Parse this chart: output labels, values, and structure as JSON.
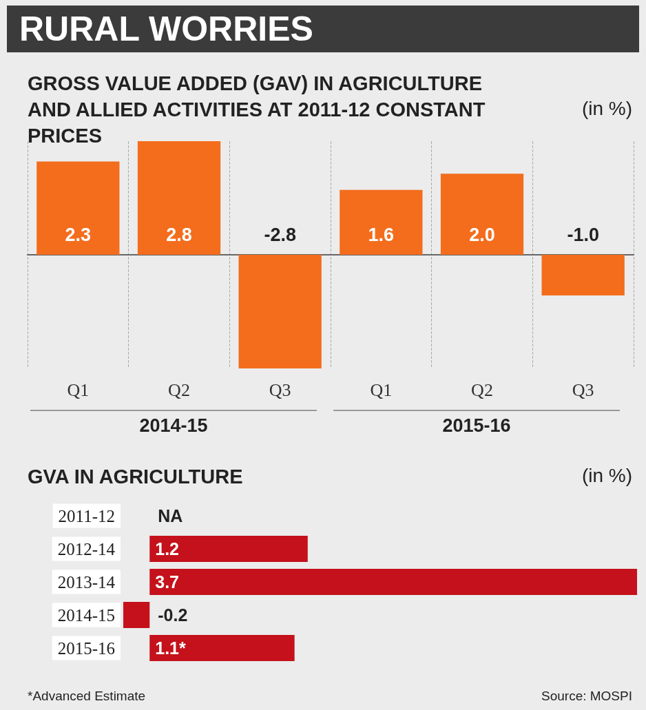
{
  "chart_data": [
    {
      "type": "bar",
      "title": "RURAL WORRIES",
      "subtitle": "GROSS VALUE ADDED (GAV) IN AGRICULTURE AND ALLIED ACTIVITIES AT 2011-12 CONSTANT PRICES",
      "ylabel": "(in %)",
      "categories": [
        "Q1",
        "Q2",
        "Q3",
        "Q1",
        "Q2",
        "Q3"
      ],
      "values": [
        2.3,
        2.8,
        -2.8,
        1.6,
        2.0,
        -1.0
      ],
      "value_labels": [
        "2.3",
        "2.8",
        "-2.8",
        "1.6",
        "2.0",
        "-1.0"
      ],
      "color": "#f36d1d",
      "grid": "x",
      "annotations": [
        "2014-15",
        "2015-16"
      ]
    },
    {
      "type": "bar",
      "orientation": "horizontal",
      "title": "GVA IN AGRICULTURE",
      "xlabel": "(in %)",
      "categories": [
        "2011-12",
        "2012-14",
        "2013-14",
        "2014-15",
        "2015-16"
      ],
      "values": [
        null,
        1.2,
        3.7,
        -0.2,
        1.1
      ],
      "value_labels": [
        "NA",
        "1.2",
        "3.7",
        "-0.2",
        "1.1*"
      ],
      "color": "#c4111b",
      "annotations": [
        "*Advanced Estimate",
        "Source: MOSPI"
      ]
    }
  ]
}
